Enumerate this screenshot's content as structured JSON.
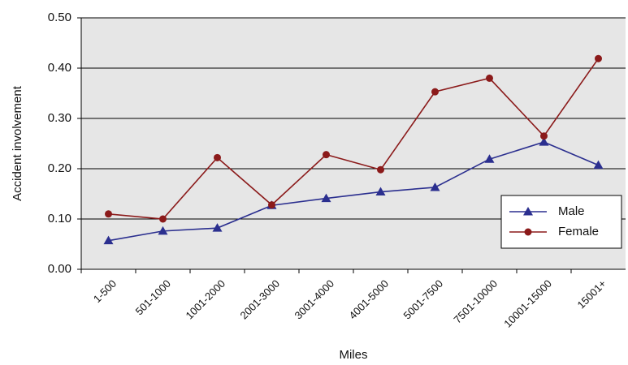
{
  "chart_data": {
    "type": "line",
    "x_label": "Miles",
    "y_label": "Accident involvement",
    "categories": [
      "1-500",
      "501-1000",
      "1001-2000",
      "2001-3000",
      "3001-4000",
      "4001-5000",
      "5001-7500",
      "7501-10000",
      "10001-15000",
      "15001+"
    ],
    "series": [
      {
        "name": "Male",
        "color": "#2b2f8f",
        "marker": "triangle",
        "values": [
          0.057,
          0.076,
          0.082,
          0.127,
          0.141,
          0.154,
          0.163,
          0.219,
          0.253,
          0.207
        ]
      },
      {
        "name": "Female",
        "color": "#8b1a1a",
        "marker": "circle",
        "values": [
          0.11,
          0.1,
          0.222,
          0.128,
          0.228,
          0.198,
          0.353,
          0.38,
          0.265,
          0.419
        ]
      }
    ],
    "ylim": [
      0,
      0.5
    ],
    "yticks": [
      {
        "value": 0,
        "label": "0.00"
      },
      {
        "value": 0.1,
        "label": "0.10"
      },
      {
        "value": 0.2,
        "label": "0.20"
      },
      {
        "value": 0.3,
        "label": "0.30"
      },
      {
        "value": 0.4,
        "label": "0.40"
      },
      {
        "value": 0.5,
        "label": "0.50"
      }
    ],
    "grid": true,
    "legend": "lower right",
    "plot_background": "#e6e6e6"
  }
}
